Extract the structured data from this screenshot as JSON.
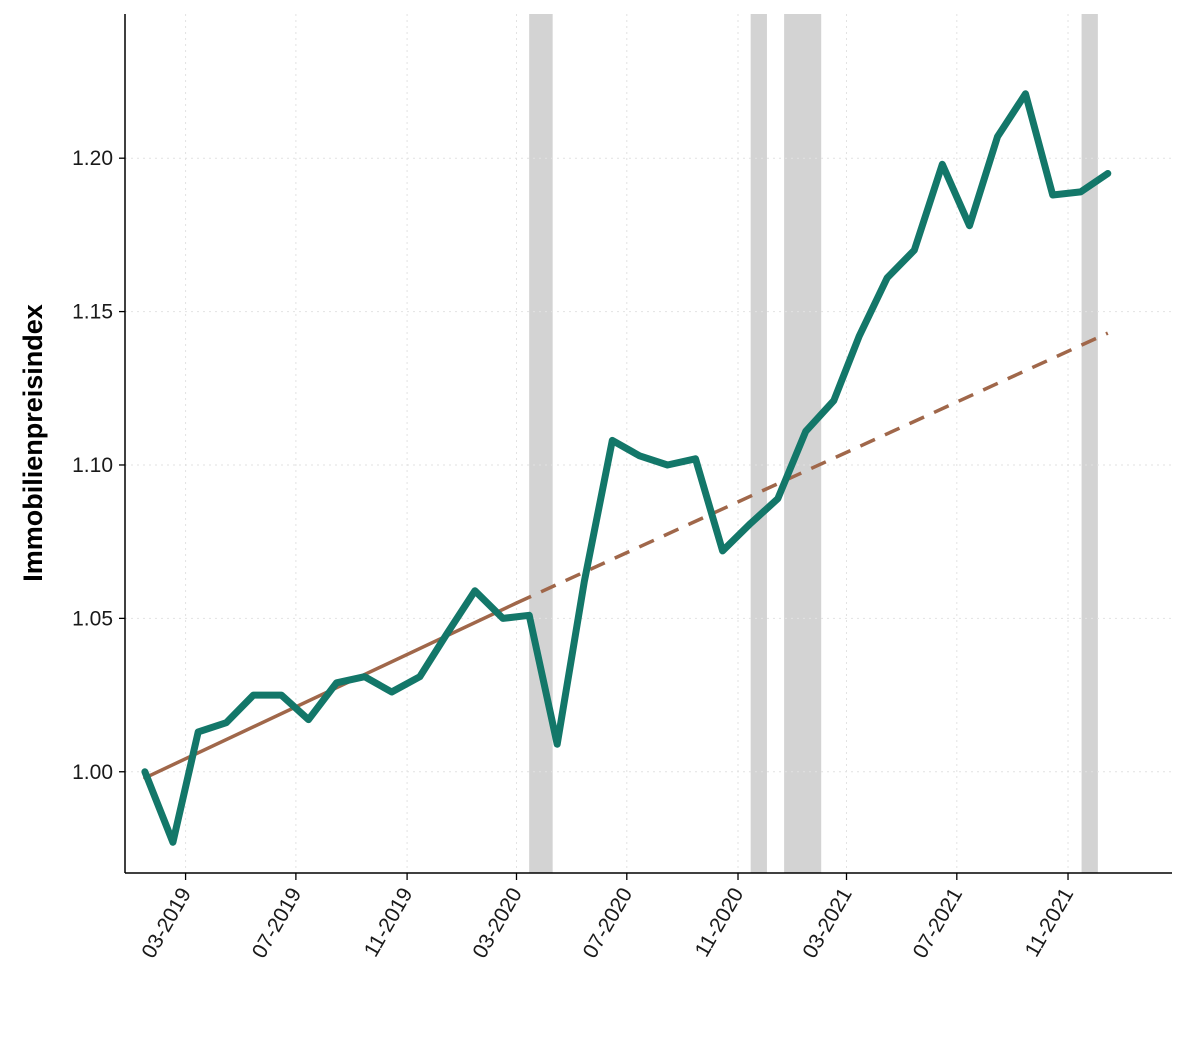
{
  "chart_data": {
    "type": "line",
    "title": "",
    "xlabel": "",
    "ylabel": "Immobilienpreisindex",
    "x_type": "date",
    "xlim": [
      "2018-12-24",
      "2022-02-24"
    ],
    "ylim": [
      0.967,
      1.247
    ],
    "grid": true,
    "legend": "none",
    "x_ticks": [
      {
        "date": "2019-03-01",
        "label": "03-2019"
      },
      {
        "date": "2019-07-01",
        "label": "07-2019"
      },
      {
        "date": "2019-11-01",
        "label": "11-2019"
      },
      {
        "date": "2020-03-01",
        "label": "03-2020"
      },
      {
        "date": "2020-07-01",
        "label": "07-2020"
      },
      {
        "date": "2020-11-01",
        "label": "11-2020"
      },
      {
        "date": "2021-03-01",
        "label": "03-2021"
      },
      {
        "date": "2021-07-01",
        "label": "07-2021"
      },
      {
        "date": "2021-11-01",
        "label": "11-2021"
      }
    ],
    "y_ticks": [
      {
        "value": 1.0,
        "label": "1.00"
      },
      {
        "value": 1.05,
        "label": "1.05"
      },
      {
        "value": 1.1,
        "label": "1.10"
      },
      {
        "value": 1.15,
        "label": "1.15"
      },
      {
        "value": 1.2,
        "label": "1.20"
      }
    ],
    "shaded_periods": [
      {
        "start": "2020-03-15",
        "end": "2020-04-10"
      },
      {
        "start": "2020-11-15",
        "end": "2020-12-03"
      },
      {
        "start": "2020-12-22",
        "end": "2021-02-01"
      },
      {
        "start": "2021-11-16",
        "end": "2021-12-04"
      }
    ],
    "series": [
      {
        "role": "observed",
        "style": "solid",
        "color": "#137769",
        "x": [
          "2019-01-15",
          "2019-02-15",
          "2019-03-15",
          "2019-04-15",
          "2019-05-15",
          "2019-06-15",
          "2019-07-15",
          "2019-08-15",
          "2019-09-15",
          "2019-10-15",
          "2019-11-15",
          "2019-12-15",
          "2020-01-15",
          "2020-02-15",
          "2020-03-15",
          "2020-04-15",
          "2020-05-15",
          "2020-06-15",
          "2020-07-15",
          "2020-08-15",
          "2020-09-15",
          "2020-10-15",
          "2020-11-15",
          "2020-12-15",
          "2021-01-15",
          "2021-02-15",
          "2021-03-15",
          "2021-04-15",
          "2021-05-15",
          "2021-06-15",
          "2021-07-15",
          "2021-08-15",
          "2021-09-15",
          "2021-10-15",
          "2021-11-15",
          "2021-12-15"
        ],
        "values": [
          1.0,
          0.977,
          1.013,
          1.016,
          1.025,
          1.025,
          1.017,
          1.029,
          1.031,
          1.026,
          1.031,
          1.045,
          1.059,
          1.05,
          1.051,
          1.009,
          1.062,
          1.108,
          1.103,
          1.1,
          1.102,
          1.072,
          1.081,
          1.089,
          1.111,
          1.121,
          1.142,
          1.161,
          1.17,
          1.198,
          1.178,
          1.207,
          1.221,
          1.188,
          1.189,
          1.195
        ]
      },
      {
        "role": "trend-fitted",
        "style": "solid",
        "color": "#a0674a",
        "x": [
          "2019-01-15",
          "2020-03-01"
        ],
        "values": [
          0.998,
          1.055
        ]
      },
      {
        "role": "trend-projected",
        "style": "dashed",
        "color": "#a0674a",
        "x": [
          "2020-03-01",
          "2021-12-15"
        ],
        "values": [
          1.055,
          1.143
        ]
      }
    ]
  }
}
